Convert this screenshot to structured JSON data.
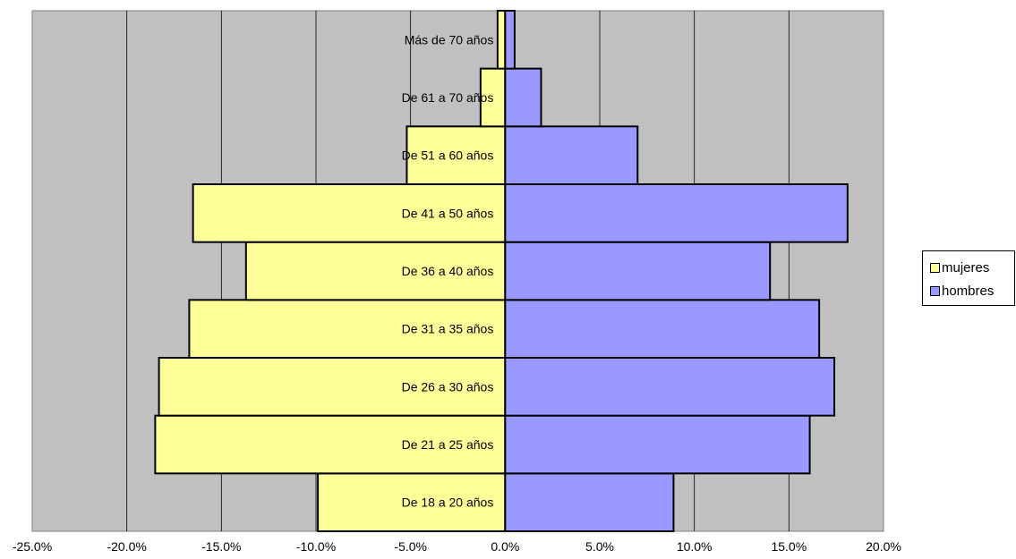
{
  "chart_data": {
    "type": "bar",
    "orientation": "horizontal",
    "title": "",
    "xlabel": "",
    "ylabel": "",
    "xlim": [
      -0.25,
      0.2
    ],
    "x_tick_values": [
      -0.25,
      -0.2,
      -0.15,
      -0.1,
      -0.05,
      0,
      0.05,
      0.1,
      0.15,
      0.2
    ],
    "x_tick_labels": [
      "-25.0%",
      "-20.0%",
      "-15.0%",
      "-10.0%",
      "-5.0%",
      "0.0%",
      "5.0%",
      "10.0%",
      "15.0%",
      "20.0%"
    ],
    "categories": [
      "De 18 a 20 años",
      "De 21 a 25 años",
      "De 26 a 30 años",
      "De 31 a 35 años",
      "De 36 a 40 años",
      "De 41 a 50 años",
      "De 51 a 60 años",
      "De 61 a 70 años",
      "Más de 70 años"
    ],
    "series": [
      {
        "name": "mujeres",
        "color": "#ffff99",
        "values": [
          -0.099,
          -0.185,
          -0.183,
          -0.167,
          -0.137,
          -0.165,
          -0.052,
          -0.013,
          -0.004
        ]
      },
      {
        "name": "hombres",
        "color": "#9999ff",
        "values": [
          0.089,
          0.161,
          0.174,
          0.166,
          0.14,
          0.181,
          0.07,
          0.019,
          0.005
        ]
      }
    ],
    "grid": true,
    "plot_background": "#c0c0c0",
    "legend_position": "right"
  }
}
